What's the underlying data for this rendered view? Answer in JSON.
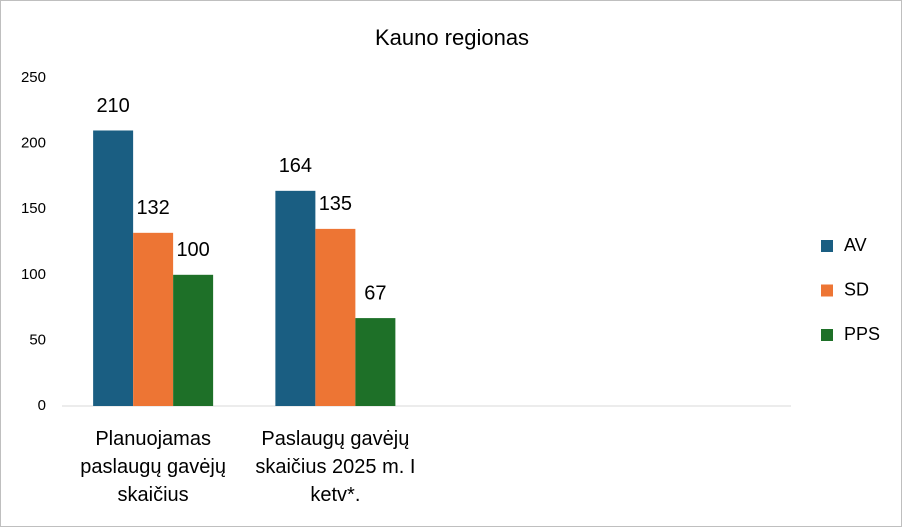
{
  "chart_data": {
    "type": "bar",
    "title": "Kauno regionas",
    "categories": [
      "Planuojamas paslaugų gavėjų skaičius",
      "Paslaugų gavėjų skaičius 2025 m. I ketv*.",
      null,
      null
    ],
    "series": [
      {
        "name": "AV",
        "color": "#1a5e82",
        "values": [
          210,
          164,
          null,
          null
        ]
      },
      {
        "name": "SD",
        "color": "#ed7534",
        "values": [
          132,
          135,
          null,
          null
        ]
      },
      {
        "name": "PPS",
        "color": "#1e7028",
        "values": [
          100,
          67,
          null,
          null
        ]
      }
    ],
    "ylim": [
      0,
      250
    ],
    "yticks": [
      0,
      50,
      100,
      150,
      200,
      250
    ],
    "grid": false,
    "legend": "right"
  }
}
